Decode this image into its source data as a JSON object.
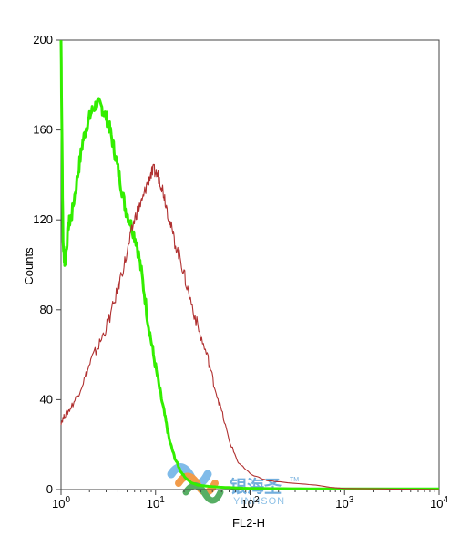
{
  "chart_data": {
    "type": "line",
    "xlabel": "FL2-H",
    "ylabel": "Counts",
    "xscale": "log",
    "xlim": [
      1,
      10000
    ],
    "ylim": [
      0,
      200
    ],
    "y_ticks": [
      0,
      40,
      80,
      120,
      160,
      200
    ],
    "x_tick_base": "10",
    "x_tick_exponents": [
      "0",
      "1",
      "2",
      "3",
      "4"
    ],
    "grid": false,
    "series": [
      {
        "color": "#33ee00",
        "x": [
          1,
          1.05,
          1.1,
          1.2,
          1.3,
          1.5,
          1.7,
          1.9,
          2.1,
          2.4,
          2.7,
          3.0,
          3.3,
          3.7,
          4.2,
          4.8,
          5.5,
          6.3,
          7.2,
          8.3,
          9.5,
          11,
          12.5,
          14,
          16,
          18.5,
          21,
          24,
          28,
          35,
          50,
          100,
          500,
          10000
        ],
        "y": [
          200,
          110,
          100,
          118,
          122,
          140,
          155,
          163,
          168,
          172,
          170,
          166,
          160,
          150,
          138,
          125,
          118,
          110,
          95,
          75,
          60,
          45,
          33,
          22,
          14,
          8,
          5,
          3,
          2,
          1.5,
          1,
          0.5,
          0.3,
          0.3
        ]
      },
      {
        "color": "#b03030",
        "x": [
          1,
          1.1,
          1.25,
          1.5,
          1.8,
          2.1,
          2.5,
          3.0,
          3.6,
          4.3,
          5.0,
          5.8,
          6.5,
          7.2,
          8.0,
          8.8,
          9.6,
          10.5,
          11.5,
          12.5,
          14,
          16,
          18.5,
          21,
          25,
          30,
          36,
          42,
          50,
          60,
          75,
          100,
          150,
          250,
          500,
          700,
          1000,
          10000
        ],
        "y": [
          30,
          33,
          36,
          42,
          50,
          58,
          64,
          72,
          82,
          95,
          105,
          118,
          125,
          128,
          135,
          140,
          142,
          140,
          136,
          130,
          120,
          110,
          102,
          92,
          80,
          68,
          58,
          46,
          35,
          22,
          12,
          7,
          4,
          3,
          2,
          1,
          0.5,
          0
        ]
      }
    ]
  },
  "watermark": {
    "cn_text": "银海圣",
    "tm": "TM",
    "en_text": "YINHSON"
  }
}
